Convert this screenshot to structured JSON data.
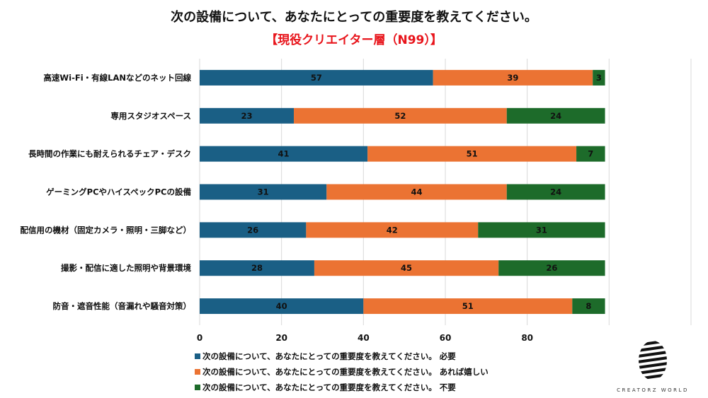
{
  "chart_data": {
    "type": "bar",
    "orientation": "horizontal",
    "stacked": true,
    "title": "次の設備について、あなたにとっての重要度を教えてください。",
    "subtitle": "【現役クリエイター層（N99）】",
    "categories": [
      "高速Wi-Fi・有線LANなどのネット回線",
      "専用スタジオスペース",
      "長時間の作業にも耐えられるチェア・デスク",
      "ゲーミングPCやハイスペックPCの設備",
      "配信用の機材（固定カメラ・照明・三脚など）",
      "撮影・配信に適した照明や背景環境",
      "防音・遮音性能（音漏れや騒音対策）"
    ],
    "series": [
      {
        "name": "次の設備について、あなたにとっての重要度を教えてください。 必要",
        "color": "#1a5f85",
        "values": [
          57,
          23,
          41,
          31,
          26,
          28,
          40
        ]
      },
      {
        "name": "次の設備について、あなたにとっての重要度を教えてください。 あれば嬉しい",
        "color": "#eb7333",
        "values": [
          39,
          52,
          51,
          44,
          42,
          45,
          51
        ]
      },
      {
        "name": "次の設備について、あなたにとっての重要度を教えてください。 不要",
        "color": "#1d6b2a",
        "values": [
          3,
          24,
          7,
          24,
          31,
          26,
          8
        ]
      }
    ],
    "xlim": [
      0,
      120
    ],
    "xticks": [
      0,
      20,
      40,
      60,
      80
    ],
    "grid": true,
    "legend": "bottom-left"
  },
  "logo": {
    "text": "CREATORZ WORLD"
  }
}
